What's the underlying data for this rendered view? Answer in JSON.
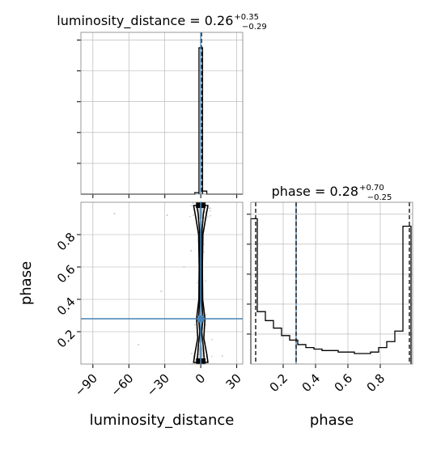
{
  "chart_data": {
    "type": "corner",
    "parameters": [
      "luminosity_distance",
      "phase"
    ],
    "panels": [
      {
        "id": "luminosity_distance_marginal",
        "type": "histogram",
        "title_base": "luminosity_distance = 0.26",
        "title_sup": "+0.35",
        "title_sub": "−0.29",
        "xlim": [
          -100,
          35
        ],
        "ylim": [
          0,
          1.05
        ],
        "grid": true,
        "bins": [
          {
            "x0": -5,
            "x1": -1.5,
            "y": 0.01
          },
          {
            "x0": -1.5,
            "x1": 1.5,
            "y": 0.95
          },
          {
            "x0": 1.5,
            "x1": 5,
            "y": 0.02
          }
        ],
        "quantiles": [
          -0.03,
          0.61
        ],
        "median": 0.26,
        "truth": 0
      },
      {
        "id": "phase_marginal",
        "type": "histogram",
        "title_base": "phase = 0.28",
        "title_sup": "+0.70",
        "title_sub": "−0.25",
        "xlim": [
          0,
          1
        ],
        "ylim": [
          0,
          1.08
        ],
        "grid": true,
        "bin_edges": [
          0,
          0.04,
          0.09,
          0.14,
          0.19,
          0.24,
          0.29,
          0.34,
          0.39,
          0.44,
          0.49,
          0.54,
          0.59,
          0.64,
          0.69,
          0.74,
          0.79,
          0.84,
          0.89,
          0.94,
          0.99
        ],
        "counts": [
          0.97,
          0.35,
          0.29,
          0.24,
          0.19,
          0.16,
          0.13,
          0.11,
          0.1,
          0.09,
          0.09,
          0.08,
          0.08,
          0.07,
          0.07,
          0.08,
          0.11,
          0.15,
          0.22,
          0.92
        ],
        "quantiles": [
          0.03,
          0.98
        ],
        "median": 0.28,
        "truth": 0.28
      },
      {
        "id": "joint",
        "type": "scatter_contour",
        "xlabel": "luminosity_distance",
        "ylabel": "phase",
        "xlim": [
          -100,
          35
        ],
        "ylim": [
          0,
          1
        ],
        "grid": true,
        "truth": {
          "x": 0,
          "y": 0.28
        },
        "contours": [
          {
            "points": [
              [
                -3,
                0.01
              ],
              [
                -2.2,
                0.1
              ],
              [
                -0.8,
                0.2
              ],
              [
                -1.8,
                0.28
              ],
              [
                -0.9,
                0.4
              ],
              [
                -0.7,
                0.6
              ],
              [
                -0.8,
                0.8
              ],
              [
                -2.2,
                0.93
              ],
              [
                -3.5,
                0.98
              ],
              [
                3.5,
                0.98
              ],
              [
                2.2,
                0.93
              ],
              [
                0.8,
                0.8
              ],
              [
                0.7,
                0.6
              ],
              [
                0.9,
                0.4
              ],
              [
                1.8,
                0.28
              ],
              [
                0.8,
                0.2
              ],
              [
                2.2,
                0.1
              ],
              [
                3,
                0.01
              ]
            ]
          },
          {
            "points": [
              [
                -6,
                0.01
              ],
              [
                -5,
                0.06
              ],
              [
                -2.5,
                0.16
              ],
              [
                -3.5,
                0.28
              ],
              [
                -1.6,
                0.4
              ],
              [
                -1.3,
                0.6
              ],
              [
                -1.8,
                0.8
              ],
              [
                -4.5,
                0.92
              ],
              [
                -6,
                0.98
              ],
              [
                6,
                0.98
              ],
              [
                4.5,
                0.92
              ],
              [
                1.8,
                0.8
              ],
              [
                1.3,
                0.6
              ],
              [
                1.6,
                0.4
              ],
              [
                3.5,
                0.28
              ],
              [
                2.5,
                0.16
              ],
              [
                5,
                0.06
              ],
              [
                6,
                0.01
              ]
            ]
          }
        ]
      }
    ],
    "axes": {
      "luminosity_distance": {
        "ticks": [
          -90,
          -60,
          -30,
          0,
          30
        ],
        "tick_labels": [
          "−90",
          "−60",
          "−30",
          "0",
          "30"
        ]
      },
      "phase": {
        "ticks": [
          0.2,
          0.4,
          0.6,
          0.8
        ],
        "tick_labels": [
          "0.2",
          "0.4",
          "0.6",
          "0.8"
        ]
      }
    },
    "colors": {
      "truth": "#4682b4",
      "hist": "#000000",
      "points": "#c8c8c8",
      "grid": "#b0b0b0",
      "spine": "#808080"
    }
  }
}
